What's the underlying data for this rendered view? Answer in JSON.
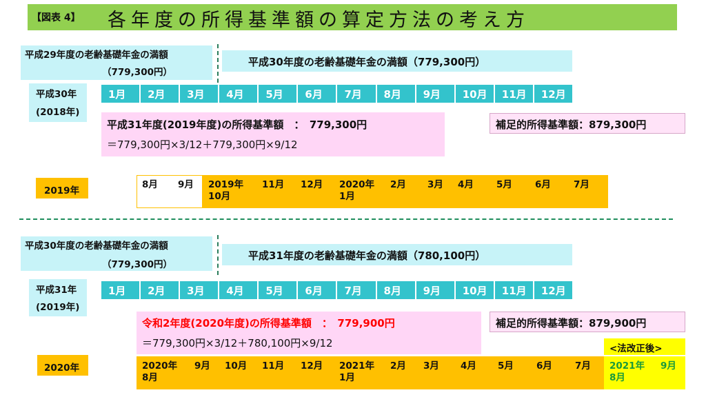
{
  "title": {
    "tag": "【図表 4】",
    "main": "各年度の所得基準額の算定方法の考え方"
  },
  "section1": {
    "prev_label_line1": "平成29年度の老齢基礎年金の満額",
    "prev_label_line2": "（779,300円）",
    "curr_label": "平成30年度の老齢基礎年金の満額（779,300円）",
    "year_line1": "平成30年",
    "year_line2": "(2018年)",
    "months": [
      "1月",
      "2月",
      "3月",
      "4月",
      "5月",
      "6月",
      "7月",
      "8月",
      "9月",
      "10月",
      "11月",
      "12月"
    ],
    "calc_title": "平成31年度(2019年度)の所得基準額　：　779,300円",
    "calc_formula": "＝779,300円×3/12＋779,300円×9/12",
    "supplement": "補足的所得基準額：879,300円",
    "fiscal_label": "2019年",
    "timeline": [
      "8月",
      "9月",
      "2019年\n10月",
      "11月",
      "12月",
      "2020年\n1月",
      "2月",
      "3月",
      "4月",
      "5月",
      "6月",
      "7月"
    ]
  },
  "section2": {
    "prev_label_line1": "平成30年度の老齢基礎年金の満額",
    "prev_label_line2": "（779,300円）",
    "curr_label": "平成31年度の老齢基礎年金の満額（780,100円）",
    "year_line1": "平成31年",
    "year_line2": "(2019年)",
    "months": [
      "1月",
      "2月",
      "3月",
      "4月",
      "5月",
      "6月",
      "7月",
      "8月",
      "9月",
      "10月",
      "11月",
      "12月"
    ],
    "calc_title": "令和2年度(2020年度)の所得基準額　：　779,900円",
    "calc_formula": "＝779,300円×3/12＋780,100円×9/12",
    "supplement": "補足的所得基準額：879,900円",
    "law_change": "<法改正後>",
    "fiscal_label": "2020年",
    "timeline": [
      "2020年\n8月",
      "9月",
      "10月",
      "11月",
      "12月",
      "2021年\n1月",
      "2月",
      "3月",
      "4月",
      "5月",
      "6月",
      "7月"
    ],
    "timeline_green": [
      "2021年\n8月",
      "9月"
    ]
  },
  "colors": {
    "title_bg": "#92d050",
    "month_bar": "#33c3cc",
    "orange": "#ffc000",
    "pink": "#ffd6f6",
    "cyan": "#c7f3f8",
    "red": "#ff0000",
    "green": "#1a9a3a"
  }
}
